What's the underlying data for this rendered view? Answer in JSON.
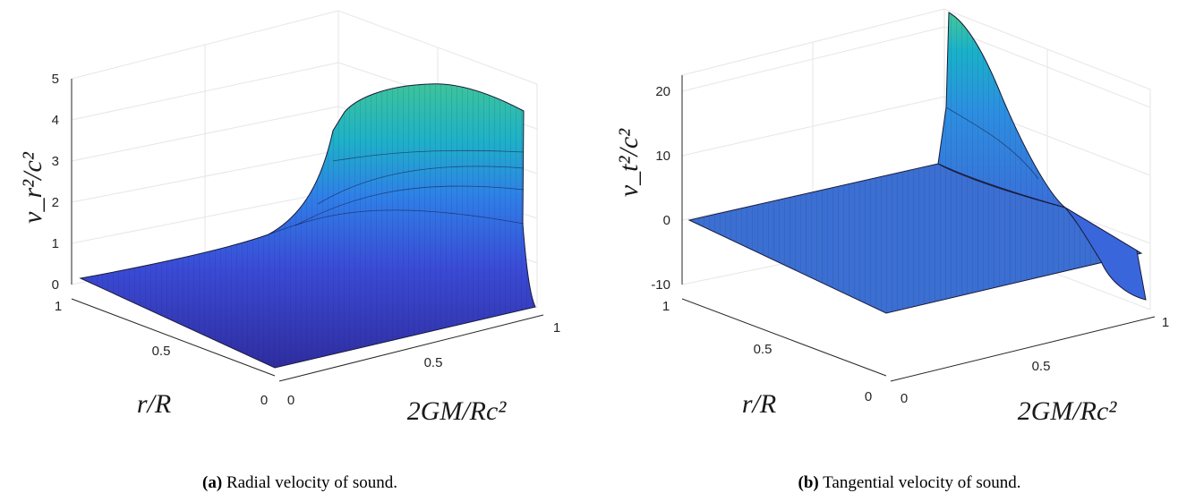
{
  "chart_data": [
    {
      "type": "surface",
      "x_label": "2GM/Rc²",
      "y_label": "r/R",
      "z_label": "v_r²/c²",
      "x_ticks": [
        "0",
        "0.5",
        "1"
      ],
      "y_ticks": [
        "0",
        "0.5",
        "1"
      ],
      "z_ticks": [
        "0",
        "1",
        "2",
        "3",
        "4",
        "5"
      ],
      "xlim": [
        0,
        1
      ],
      "ylim": [
        0,
        1
      ],
      "zlim": [
        0,
        5
      ],
      "grid": true,
      "colormap": "parula",
      "caption_label": "(a)",
      "caption_text": " Radial velocity of sound."
    },
    {
      "type": "surface",
      "x_label": "2GM/Rc²",
      "y_label": "r/R",
      "z_label": "v_t²/c²",
      "x_ticks": [
        "0",
        "0.5",
        "1"
      ],
      "y_ticks": [
        "0",
        "0.5",
        "1"
      ],
      "z_ticks": [
        "-10",
        "0",
        "10",
        "20"
      ],
      "xlim": [
        0,
        1
      ],
      "ylim": [
        0,
        1
      ],
      "zlim": [
        -10,
        25
      ],
      "grid": true,
      "colormap": "parula",
      "caption_label": "(b)",
      "caption_text": " Tangential velocity of sound."
    }
  ]
}
